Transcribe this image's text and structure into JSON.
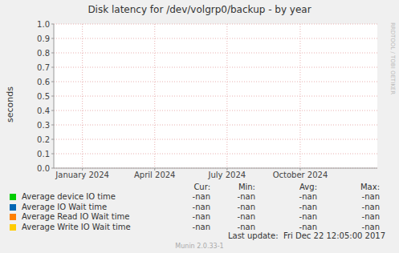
{
  "chart_data": {
    "type": "line",
    "title": "Disk latency for /dev/volgrp0/backup - by year",
    "y_label": "seconds",
    "x": [
      1700956800000,
      1736121600000
    ],
    "xlim": [
      1700956800000,
      1736121600000
    ],
    "xticks": [
      {
        "value": 1704067200000,
        "label": "January 2024"
      },
      {
        "value": 1711929600000,
        "label": "April 2024"
      },
      {
        "value": 1719792000000,
        "label": "July 2024"
      },
      {
        "value": 1727740800000,
        "label": "October 2024"
      }
    ],
    "ylim": [
      0,
      1
    ],
    "yticks": [
      {
        "value": 0,
        "label": "0.0"
      },
      {
        "value": 0.1,
        "label": "0.1"
      },
      {
        "value": 0.2,
        "label": "0.2"
      },
      {
        "value": 0.3,
        "label": "0.3"
      },
      {
        "value": 0.4,
        "label": "0.4"
      },
      {
        "value": 0.5,
        "label": "0.5"
      },
      {
        "value": 0.6,
        "label": "0.6"
      },
      {
        "value": 0.7,
        "label": "0.7"
      },
      {
        "value": 0.8,
        "label": "0.8"
      },
      {
        "value": 0.9,
        "label": "0.9"
      },
      {
        "value": 1,
        "label": "1.0"
      }
    ],
    "grid": true,
    "stat_columns": [
      "Cur:",
      "Min:",
      "Avg:",
      "Max:"
    ],
    "series": [
      {
        "name": "Average device IO time",
        "color": "#00cc00",
        "values": [
          null,
          null
        ],
        "stats": [
          "-nan",
          "-nan",
          "-nan",
          "-nan"
        ]
      },
      {
        "name": "Average IO Wait time",
        "color": "#0066b3",
        "values": [
          null,
          null
        ],
        "stats": [
          "-nan",
          "-nan",
          "-nan",
          "-nan"
        ]
      },
      {
        "name": "Average Read IO Wait time",
        "color": "#ff8000",
        "values": [
          null,
          null
        ],
        "stats": [
          "-nan",
          "-nan",
          "-nan",
          "-nan"
        ]
      },
      {
        "name": "Average Write IO Wait time",
        "color": "#ffcc00",
        "values": [
          null,
          null
        ],
        "stats": [
          "-nan",
          "-nan",
          "-nan",
          "-nan"
        ]
      }
    ],
    "footer": "Last update:  Fri Dec 22 12:05:00 2017",
    "credit": "Munin 2.0.33-1",
    "watermark": "RRDTOOL / TOBI OETIKER"
  }
}
